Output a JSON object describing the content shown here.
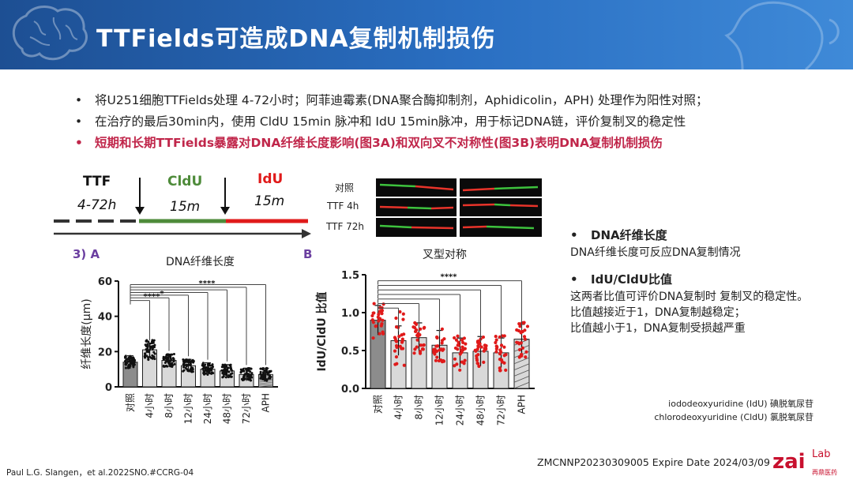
{
  "slide": {
    "title": "TTFields可造成DNA复制机制损伤",
    "bullets": [
      {
        "dot": "•",
        "text": "将U251细胞TTFields处理 4-72小时；阿菲迪霉素(DNA聚合酶抑制剂，Aphidicolin，APH) 处理作为阳性对照；"
      },
      {
        "dot": "•",
        "text": "在治疗的最后30min内，使用 CldU 15min 脉冲和 IdU 15min脉冲，用于标记DNA链，评价复制叉的稳定性"
      },
      {
        "dot": "•",
        "text": "短期和长期TTFields暴露对DNA纤维长度影响(图3A)和双向叉不对称性(图3B)表明DNA复制机制损伤"
      }
    ]
  },
  "scheme": {
    "ttf_label": "TTF",
    "ttf_time": "4-72h",
    "cldu_label": "CldU",
    "cldu_time": "15m",
    "idu_label": "IdU",
    "idu_time": "15m",
    "colors": {
      "cldu": "#4e8b3a",
      "idu": "#e01a1a",
      "line": "#333333"
    }
  },
  "micrographs": {
    "labels": [
      "对照",
      "TTF 4h",
      "TTF 72h"
    ]
  },
  "panels": {
    "a": "3)  A",
    "b": "B"
  },
  "chart_data": [
    {
      "type": "bar",
      "title": "DNA纤维长度",
      "ylabel": "纤维长度(μm)",
      "xlabel": "",
      "categories": [
        "对照",
        "4小时",
        "8小时",
        "12小时",
        "24小时",
        "48小时",
        "72小时",
        "APH"
      ],
      "values": [
        14,
        21,
        15,
        12,
        10,
        9,
        7,
        7
      ],
      "ylim": [
        0,
        60
      ],
      "yticks": [
        "0",
        "20",
        "40",
        "60"
      ],
      "significance": [
        "****",
        "*",
        "****"
      ],
      "bar_fill": "#d9d9d9",
      "control_fill": "#8c8c8c",
      "point_color": "#111111"
    },
    {
      "type": "bar",
      "title": "叉型对称",
      "ylabel": "IdU/CldU 比值",
      "xlabel": "",
      "categories": [
        "对照",
        "4小时",
        "8小时",
        "12小时",
        "24小时",
        "48小时",
        "72小时",
        "APH"
      ],
      "values": [
        0.9,
        0.63,
        0.67,
        0.57,
        0.47,
        0.49,
        0.47,
        0.65
      ],
      "ylim": [
        0,
        1.5
      ],
      "yticks": [
        "0.0",
        "0.5",
        "1.0",
        "1.5"
      ],
      "significance": [
        "****"
      ],
      "bar_fill": "#d9d9d9",
      "control_fill": "#8c8c8c",
      "point_color": "#e01a1a"
    }
  ],
  "side_notes": [
    {
      "dot": "•",
      "heading": "DNA纤维长度",
      "lines": [
        "DNA纤维长度可反应DNA复制情况"
      ]
    },
    {
      "dot": "•",
      "heading": "IdU/CldU比值",
      "lines": [
        "这两者比值可评价DNA复制时 复制叉的稳定性。",
        "比值越接近于1，DNA复制越稳定；",
        "比值越小于1，DNA复制受损越严重"
      ]
    }
  ],
  "abbreviations": [
    "iododeoxyuridine (IdU) 碘脱氧尿苷",
    "chlorodeoxyuridine (CldU) 氯脱氧尿苷"
  ],
  "footer": {
    "reference": "Paul L.G. Slangen，et al.2022SNO.#CCRG-04",
    "code": "ZMCNNP20230309005 Expire Date 2024/03/09",
    "logo_main": "zai",
    "logo_sup": "Lab",
    "logo_sub": "再鼎医药"
  }
}
